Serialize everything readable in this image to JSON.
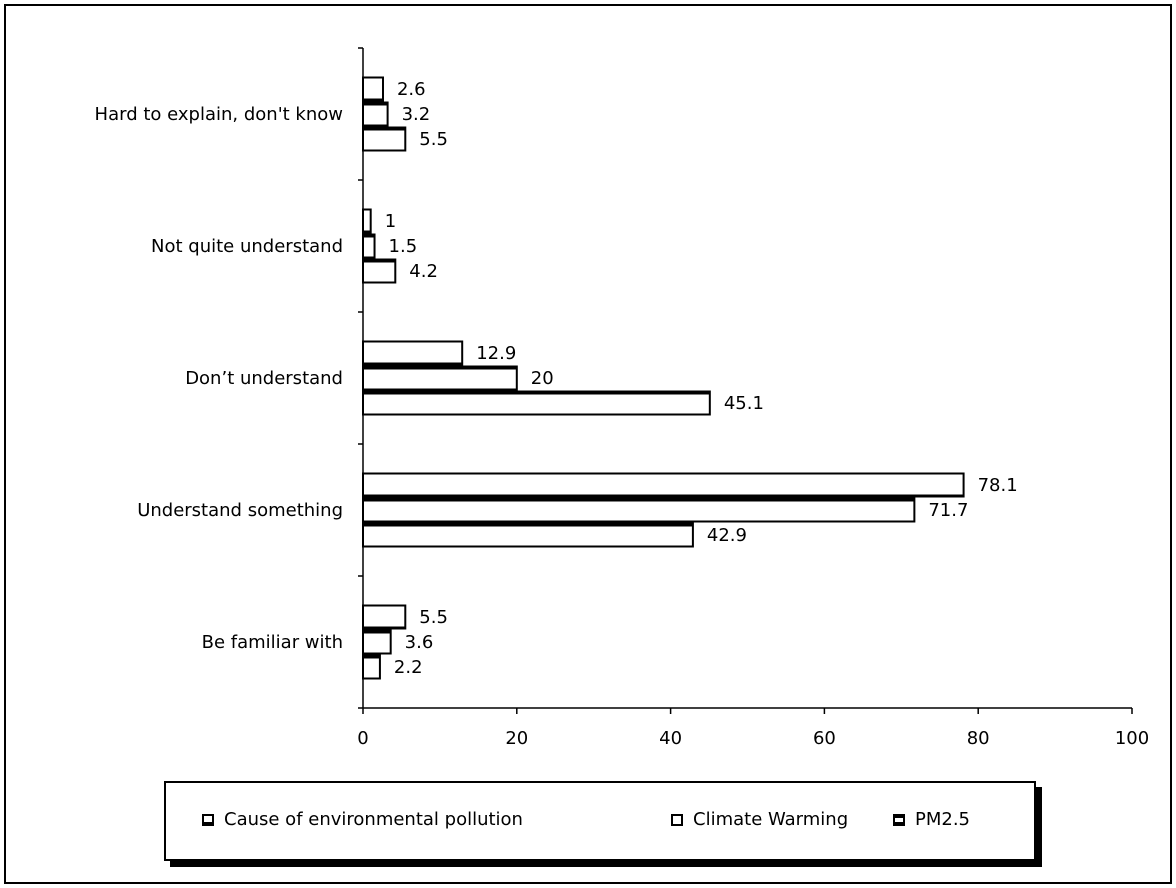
{
  "chart_data": {
    "type": "bar",
    "orientation": "horizontal",
    "categories": [
      "Be familiar with",
      "Understand something",
      "Don’t understand",
      "Not quite understand",
      "Hard to explain, don't know"
    ],
    "series": [
      {
        "name": "Cause of environmental pollution",
        "values": [
          5.5,
          78.1,
          12.9,
          1,
          2.6
        ]
      },
      {
        "name": "Climate Warming",
        "values": [
          3.6,
          71.7,
          20,
          1.5,
          3.2
        ]
      },
      {
        "name": "PM2.5",
        "values": [
          2.2,
          42.9,
          45.1,
          4.2,
          5.5
        ]
      }
    ],
    "value_labels": [
      [
        "5.5",
        "78.1",
        "12.9",
        "1",
        "2.6"
      ],
      [
        "3.6",
        "71.7",
        "20",
        "1.5",
        "3.2"
      ],
      [
        "2.2",
        "42.9",
        "45.1",
        "4.2",
        "5.5"
      ]
    ],
    "xlim": [
      0,
      100
    ],
    "xticks": [
      "0",
      "20",
      "40",
      "60",
      "80",
      "100"
    ],
    "title": "",
    "xlabel": "",
    "ylabel": "",
    "grid": false,
    "legend_position": "bottom"
  },
  "legend": {
    "item1": "Cause of environmental pollution",
    "item2": "Climate Warming",
    "item3": "PM2.5"
  }
}
